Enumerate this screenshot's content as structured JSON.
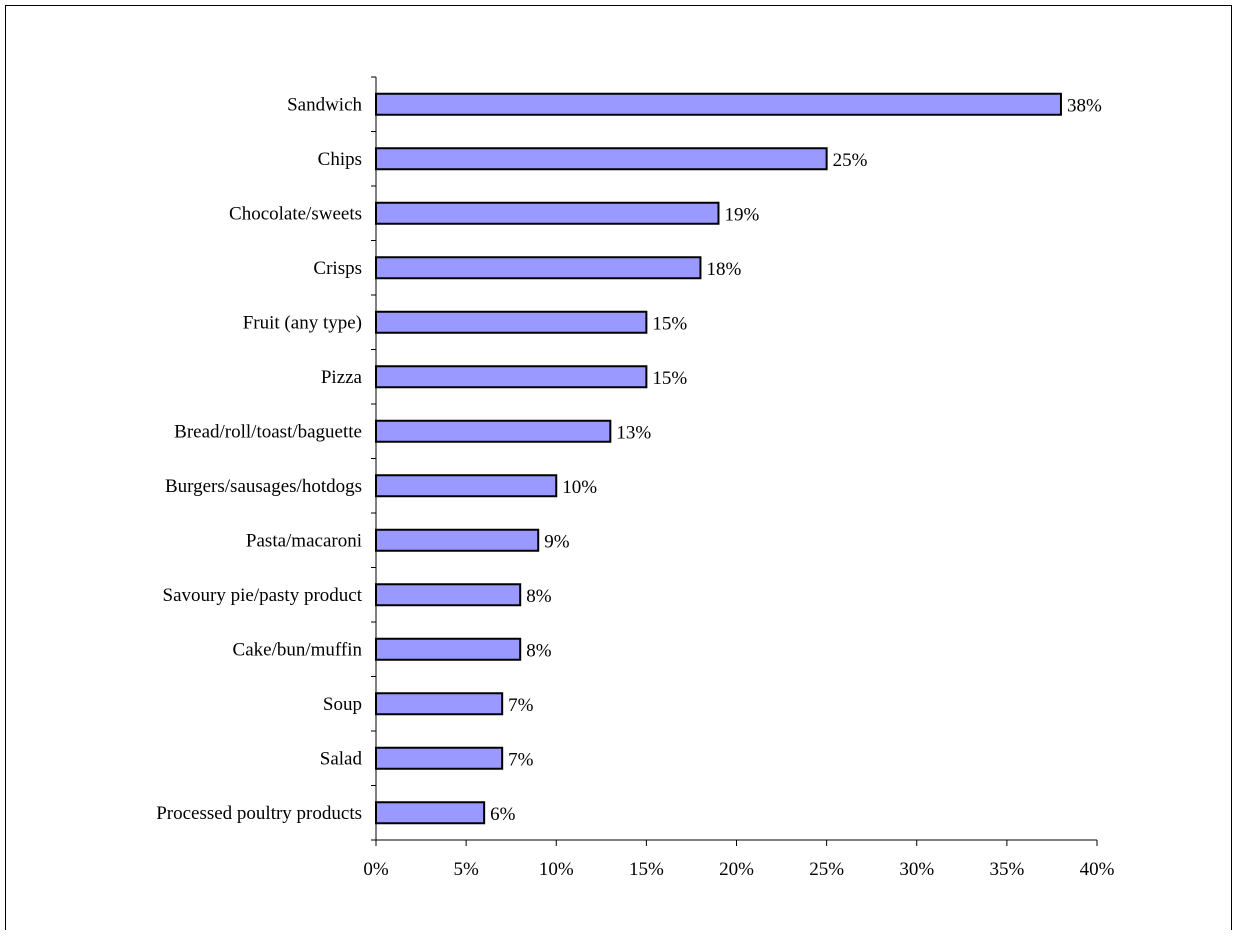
{
  "chart_data": {
    "type": "bar",
    "orientation": "horizontal",
    "title": "",
    "xlabel": "",
    "ylabel": "",
    "categories": [
      "Sandwich",
      "Chips",
      "Chocolate/sweets",
      "Crisps",
      "Fruit (any type)",
      "Pizza",
      "Bread/roll/toast/baguette",
      "Burgers/sausages/hotdogs",
      "Pasta/macaroni",
      "Savoury pie/pasty product",
      "Cake/bun/muffin",
      "Soup",
      "Salad",
      "Processed poultry products"
    ],
    "values": [
      38,
      25,
      19,
      18,
      15,
      15,
      13,
      10,
      9,
      8,
      8,
      7,
      7,
      6
    ],
    "data_labels": [
      "38%",
      "25%",
      "19%",
      "18%",
      "15%",
      "15%",
      "13%",
      "10%",
      "9%",
      "8%",
      "8%",
      "7%",
      "7%",
      "6%"
    ],
    "xlim": [
      0,
      40
    ],
    "x_ticks": [
      0,
      5,
      10,
      15,
      20,
      25,
      30,
      35,
      40
    ],
    "x_tick_labels": [
      "0%",
      "5%",
      "10%",
      "15%",
      "20%",
      "25%",
      "30%",
      "35%",
      "40%"
    ],
    "grid": false,
    "legend": "none",
    "bar_color": "#9999ff",
    "bar_edge_color": "#000000"
  }
}
